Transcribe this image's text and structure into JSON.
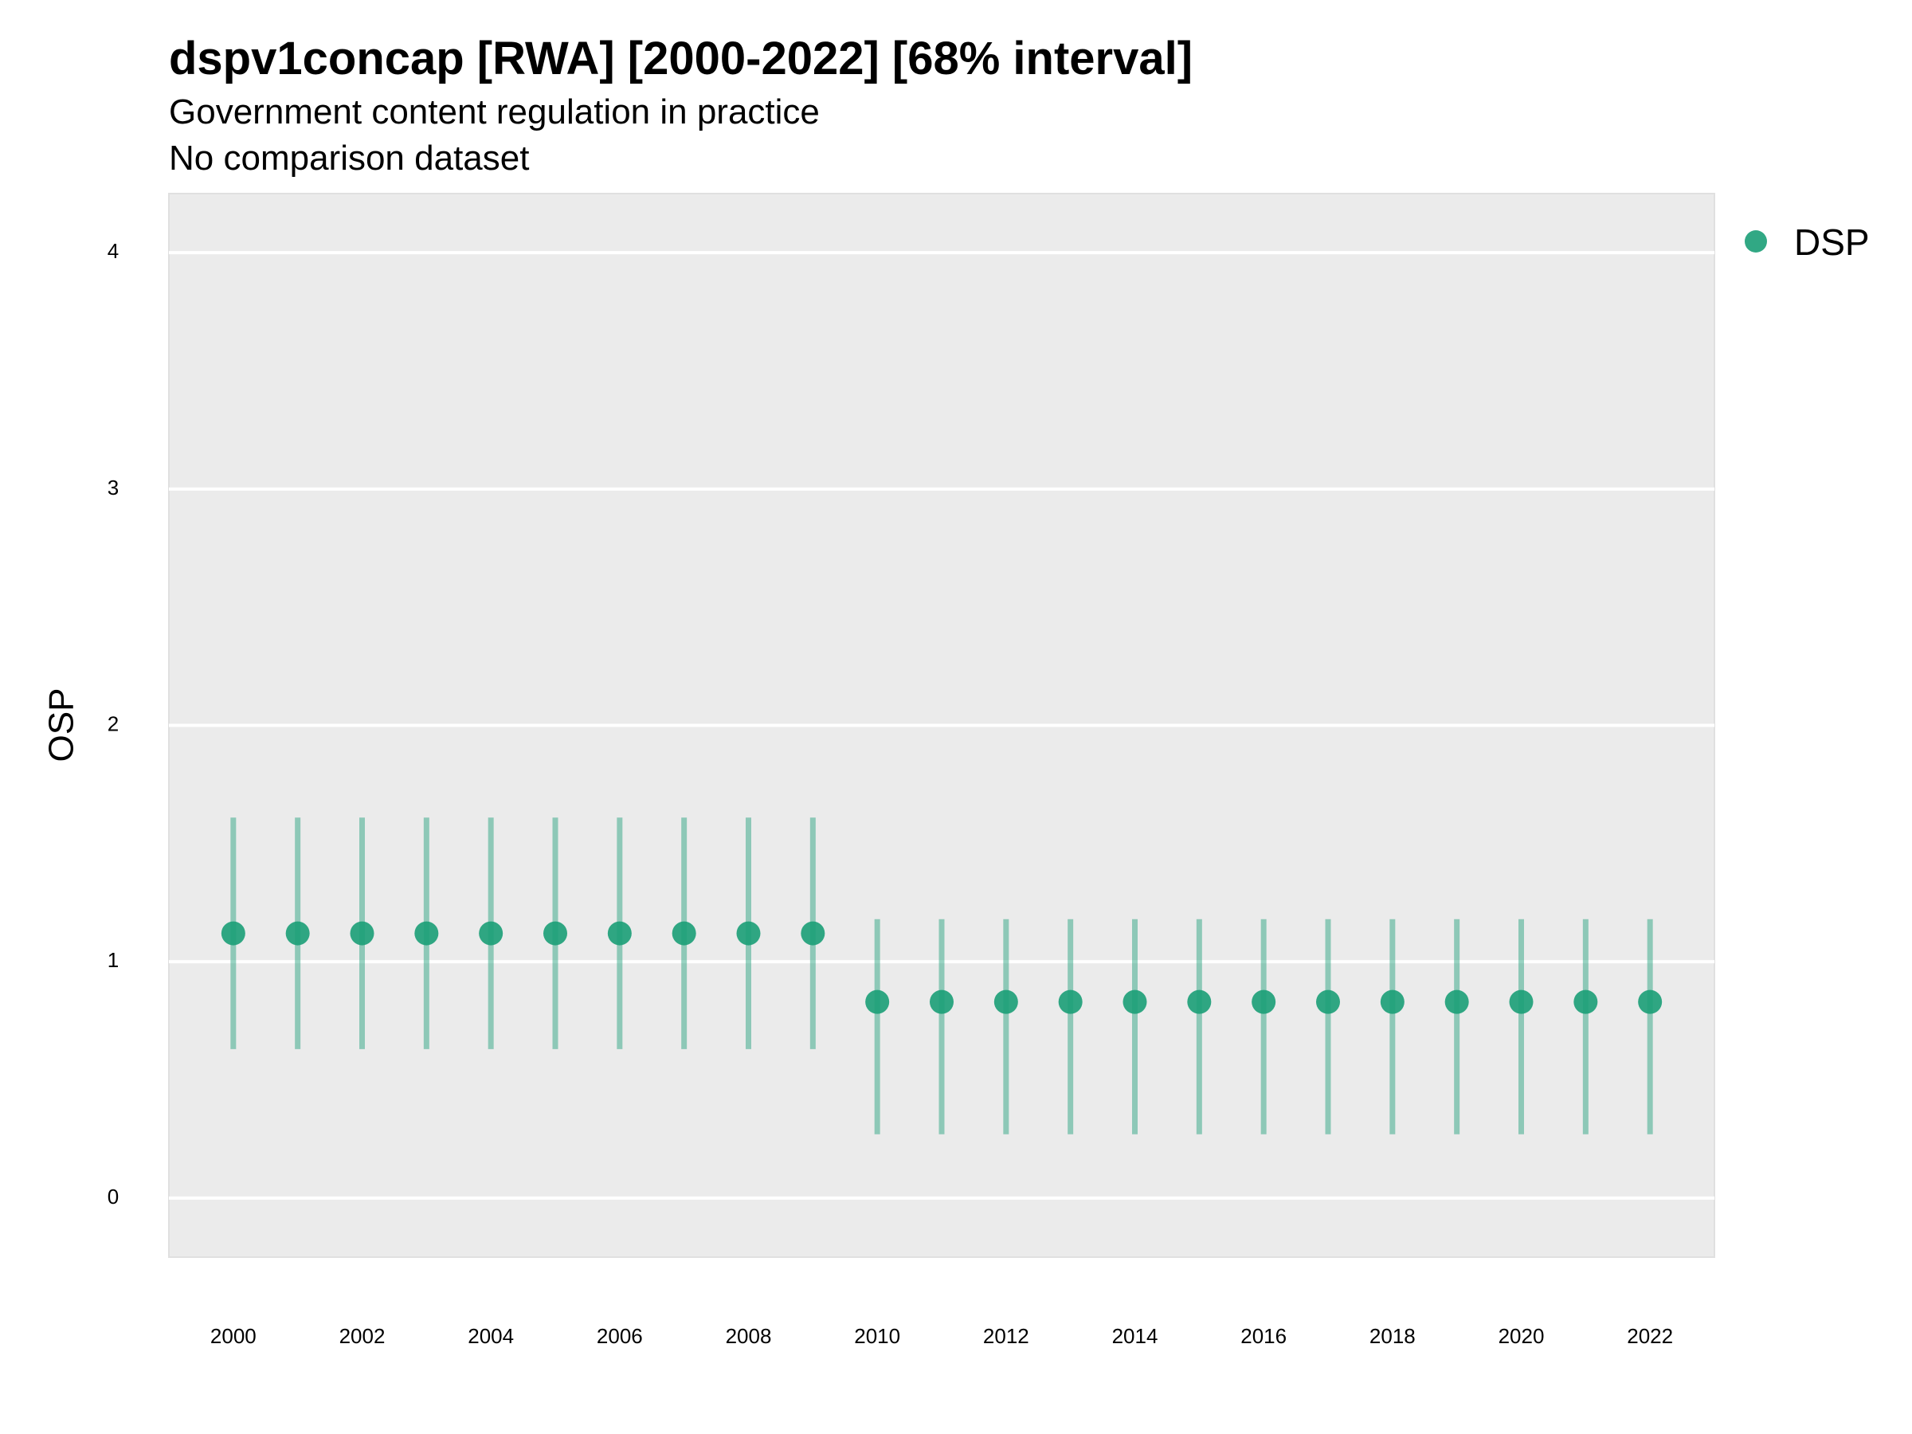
{
  "chart_data": {
    "type": "scatter",
    "title": "dspv1concap [RWA] [2000-2022] [68% interval]",
    "subtitle": "Government content regulation in practice",
    "subtitle2": "No comparison dataset",
    "xlabel": "",
    "ylabel": "OSP",
    "ylim": [
      -0.25,
      4.25
    ],
    "xlim": [
      1999,
      2023
    ],
    "y_ticks": [
      "0",
      "1",
      "2",
      "3",
      "4"
    ],
    "x_ticks": [
      "2000",
      "2002",
      "2004",
      "2006",
      "2008",
      "2010",
      "2012",
      "2014",
      "2016",
      "2018",
      "2020",
      "2022"
    ],
    "grid": true,
    "legend_position": "right",
    "series": [
      {
        "name": "DSP",
        "color": "#1b9e77",
        "x": [
          2000,
          2001,
          2002,
          2003,
          2004,
          2005,
          2006,
          2007,
          2008,
          2009,
          2010,
          2011,
          2012,
          2013,
          2014,
          2015,
          2016,
          2017,
          2018,
          2019,
          2020,
          2021,
          2022
        ],
        "y": [
          1.12,
          1.12,
          1.12,
          1.12,
          1.12,
          1.12,
          1.12,
          1.12,
          1.12,
          1.12,
          0.83,
          0.83,
          0.83,
          0.83,
          0.83,
          0.83,
          0.83,
          0.83,
          0.83,
          0.83,
          0.83,
          0.83,
          0.83
        ],
        "lower": [
          0.63,
          0.63,
          0.63,
          0.63,
          0.63,
          0.63,
          0.63,
          0.63,
          0.63,
          0.63,
          0.27,
          0.27,
          0.27,
          0.27,
          0.27,
          0.27,
          0.27,
          0.27,
          0.27,
          0.27,
          0.27,
          0.27,
          0.27
        ],
        "upper": [
          1.61,
          1.61,
          1.61,
          1.61,
          1.61,
          1.61,
          1.61,
          1.61,
          1.61,
          1.61,
          1.18,
          1.18,
          1.18,
          1.18,
          1.18,
          1.18,
          1.18,
          1.18,
          1.18,
          1.18,
          1.18,
          1.18,
          1.18
        ]
      }
    ]
  }
}
